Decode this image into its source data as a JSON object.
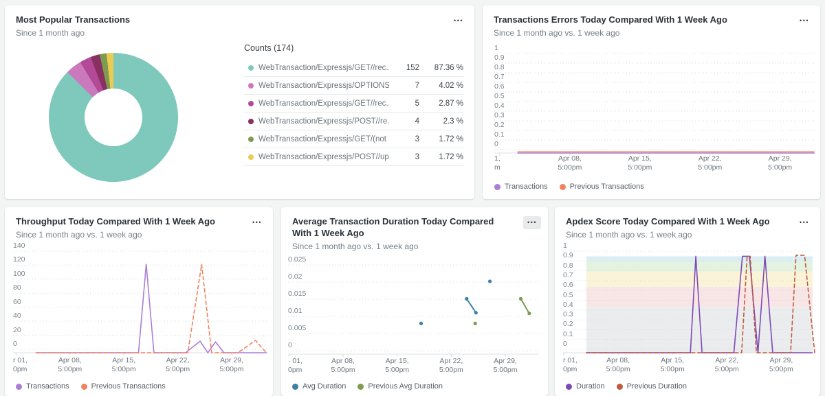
{
  "icons": {
    "ellipsis": "•••"
  },
  "chart_data": [
    {
      "id": "popular-transactions",
      "type": "pie",
      "title": "Most Popular Transactions",
      "subtitle": "Since 1 month ago",
      "legend_header": "Counts (174)",
      "total_count": 174,
      "slices": [
        {
          "label": "WebTransaction/Expressjs/GET//rec...",
          "count": "152",
          "percent": "87.36 %",
          "value": 87.36,
          "color": "#7ec9bb"
        },
        {
          "label": "WebTransaction/Expressjs/OPTIONS//",
          "count": "7",
          "percent": "4.02 %",
          "value": 4.02,
          "color": "#cb79bd"
        },
        {
          "label": "WebTransaction/Expressjs/GET//rec...",
          "count": "5",
          "percent": "2.87 %",
          "value": 2.87,
          "color": "#b34a97"
        },
        {
          "label": "WebTransaction/Expressjs/POST//re...",
          "count": "4",
          "percent": "2.3 %",
          "value": 2.3,
          "color": "#8a2f62"
        },
        {
          "label": "WebTransaction/Expressjs/GET/(not ...",
          "count": "3",
          "percent": "1.72 %",
          "value": 1.72,
          "color": "#7d9b51"
        },
        {
          "label": "WebTransaction/Expressjs/POST//up...",
          "count": "3",
          "percent": "1.72 %",
          "value": 1.72,
          "color": "#eccb52"
        }
      ]
    },
    {
      "id": "transaction-errors",
      "type": "line",
      "title": "Transactions Errors Today Compared With 1 Week Ago",
      "subtitle": "Since 1 month ago vs. 1 week ago",
      "ylim": [
        0,
        1
      ],
      "yticks": [
        {
          "v": 1,
          "label": "1"
        },
        {
          "v": 0.9,
          "label": "0.9"
        },
        {
          "v": 0.8,
          "label": "0.8"
        },
        {
          "v": 0.7,
          "label": "0.7"
        },
        {
          "v": 0.6,
          "label": "0.6"
        },
        {
          "v": 0.5,
          "label": "0.5"
        },
        {
          "v": 0.4,
          "label": "0.4"
        },
        {
          "v": 0.3,
          "label": "0.3"
        },
        {
          "v": 0.2,
          "label": "0.2"
        },
        {
          "v": 0.1,
          "label": "0.1"
        },
        {
          "v": 0,
          "label": "0"
        }
      ],
      "xticks": [
        {
          "day": 0,
          "label": "1,\nm"
        },
        {
          "day": 7,
          "label": "Apr 08,\n5:00pm"
        },
        {
          "day": 14,
          "label": "Apr 15,\n5:00pm"
        },
        {
          "day": 21,
          "label": "Apr 22,\n5:00pm"
        },
        {
          "day": 28,
          "label": "Apr 29,\n5:00pm"
        }
      ],
      "series": [
        {
          "name": "Transactions",
          "color": "#a97ed8",
          "dash": false,
          "points": [
            [
              1.8,
              0
            ],
            [
              31.4,
              0
            ]
          ]
        },
        {
          "name": "Previous Transactions",
          "color": "#f0825f",
          "dash": false,
          "points": [
            [
              1.8,
              0.012
            ],
            [
              31.4,
              0.012
            ]
          ]
        }
      ]
    },
    {
      "id": "throughput",
      "type": "line",
      "title": "Throughput Today Compared With 1 Week Ago",
      "subtitle": "Since 1 month ago vs. 1 week ago",
      "ylim": [
        0,
        140
      ],
      "yticks": [
        {
          "v": 140,
          "label": "140"
        },
        {
          "v": 120,
          "label": "120"
        },
        {
          "v": 100,
          "label": "100"
        },
        {
          "v": 80,
          "label": "80"
        },
        {
          "v": 60,
          "label": "60"
        },
        {
          "v": 40,
          "label": "40"
        },
        {
          "v": 20,
          "label": "20"
        },
        {
          "v": 0,
          "label": "0"
        }
      ],
      "xticks": [
        {
          "day": 0,
          "label": "r 01,\n0pm"
        },
        {
          "day": 7,
          "label": "Apr 08,\n5:00pm"
        },
        {
          "day": 14,
          "label": "Apr 15,\n5:00pm"
        },
        {
          "day": 21,
          "label": "Apr 22,\n5:00pm"
        },
        {
          "day": 28,
          "label": "Apr 29,\n5:00pm"
        }
      ],
      "series": [
        {
          "name": "Transactions",
          "color": "#a97ed8",
          "dash": false,
          "points": [
            [
              2.6,
              0
            ],
            [
              15.9,
              0
            ],
            [
              16.9,
              122
            ],
            [
              17.9,
              0
            ],
            [
              22.0,
              0
            ],
            [
              23.9,
              16
            ],
            [
              24.9,
              0
            ],
            [
              25.9,
              15
            ],
            [
              27.0,
              0
            ],
            [
              32.5,
              0
            ]
          ]
        },
        {
          "name": "Previous Transactions",
          "color": "#f0825f",
          "dash": true,
          "points": [
            [
              2.6,
              0
            ],
            [
              22.3,
              0
            ],
            [
              24.1,
              122
            ],
            [
              25.4,
              0
            ],
            [
              28.8,
              0
            ],
            [
              31.1,
              17
            ],
            [
              32.5,
              0
            ]
          ]
        }
      ]
    },
    {
      "id": "avg-duration",
      "type": "scatter",
      "title": "Average Transaction Duration Today Compared With 1 Week Ago",
      "subtitle": "Since 1 month ago vs. 1 week ago",
      "ylim": [
        0,
        0.025
      ],
      "yticks": [
        {
          "v": 0.025,
          "label": "0.025"
        },
        {
          "v": 0.02,
          "label": "0.02"
        },
        {
          "v": 0.015,
          "label": "0.015"
        },
        {
          "v": 0.01,
          "label": "0.01"
        },
        {
          "v": 0.005,
          "label": "0.005"
        },
        {
          "v": 0,
          "label": "0"
        }
      ],
      "xticks": [
        {
          "day": 0,
          "label": "· 01,\n0pm"
        },
        {
          "day": 7,
          "label": "Apr 08,\n5:00pm"
        },
        {
          "day": 14,
          "label": "Apr 15,\n5:00pm"
        },
        {
          "day": 21,
          "label": "Apr 22,\n5:00pm"
        },
        {
          "day": 28,
          "label": "Apr 29,\n5:00pm"
        }
      ],
      "series": [
        {
          "name": "Avg Duration",
          "color": "#3b80a8",
          "segments": [
            [
              [
                17.1,
                0.0086
              ]
            ],
            [
              [
                23.0,
                0.0155
              ],
              [
                24.2,
                0.0116
              ]
            ],
            [
              [
                26.0,
                0.0204
              ]
            ]
          ]
        },
        {
          "name": "Previous Avg Duration",
          "color": "#7d9b51",
          "segments": [
            [
              [
                24.1,
                0.0086
              ]
            ],
            [
              [
                30.0,
                0.0155
              ],
              [
                31.1,
                0.0114
              ]
            ]
          ]
        }
      ]
    },
    {
      "id": "apdex",
      "type": "line",
      "title": "Apdex Score Today Compared With 1 Week Ago",
      "subtitle": "Since 1 month ago vs. 1 week ago",
      "ylim": [
        0,
        1
      ],
      "yticks": [
        {
          "v": 1,
          "label": "1"
        },
        {
          "v": 0.9,
          "label": "0.9"
        },
        {
          "v": 0.8,
          "label": "0.8"
        },
        {
          "v": 0.7,
          "label": "0.7"
        },
        {
          "v": 0.6,
          "label": "0.6"
        },
        {
          "v": 0.5,
          "label": "0.5"
        },
        {
          "v": 0.4,
          "label": "0.4"
        },
        {
          "v": 0.3,
          "label": "0.3"
        },
        {
          "v": 0.2,
          "label": "0.2"
        },
        {
          "v": 0.1,
          "label": "0.1"
        },
        {
          "v": 0,
          "label": "0"
        }
      ],
      "xticks": [
        {
          "day": 0,
          "label": "r 01,\n0pm"
        },
        {
          "day": 7,
          "label": "Apr 08,\n5:00pm"
        },
        {
          "day": 14,
          "label": "Apr 15,\n5:00pm"
        },
        {
          "day": 21,
          "label": "Apr 22,\n5:00pm"
        },
        {
          "day": 28,
          "label": "Apr 29,\n5:00pm"
        }
      ],
      "bands": [
        {
          "from": 0.9,
          "to": 0.95,
          "color": "#dbeef3"
        },
        {
          "from": 0.8,
          "to": 0.9,
          "color": "#e4f2e0"
        },
        {
          "from": 0.65,
          "to": 0.8,
          "color": "#faf3d8"
        },
        {
          "from": 0.45,
          "to": 0.65,
          "color": "#f8e6e6"
        },
        {
          "from": 0,
          "to": 0.45,
          "color": "#ebecee"
        }
      ],
      "series": [
        {
          "name": "Duration",
          "color": "#7d49b6",
          "dash": false,
          "points": [
            [
              2.9,
              0
            ],
            [
              16.3,
              0
            ],
            [
              17.0,
              0.95
            ],
            [
              17.8,
              0
            ],
            [
              21.9,
              0
            ],
            [
              23.0,
              0.95
            ],
            [
              23.9,
              0.95
            ],
            [
              25.0,
              0
            ],
            [
              25.9,
              0.95
            ],
            [
              26.9,
              0
            ],
            [
              32,
              0
            ]
          ]
        },
        {
          "name": "Previous Duration",
          "color": "#c05a3c",
          "dash": true,
          "points": [
            [
              2.9,
              0
            ],
            [
              22.9,
              0
            ],
            [
              23.6,
              0.95
            ],
            [
              24.0,
              0.95
            ],
            [
              24.8,
              0
            ],
            [
              29.2,
              0
            ],
            [
              29.9,
              0.96
            ],
            [
              31.0,
              0.96
            ],
            [
              32.3,
              0
            ]
          ]
        }
      ]
    }
  ]
}
